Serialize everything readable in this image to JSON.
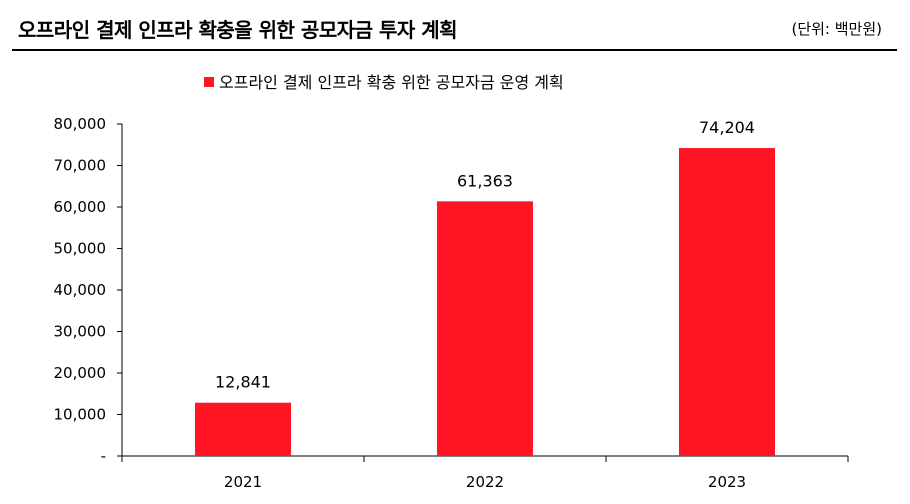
{
  "header": {
    "title": "오프라인 결제 인프라 확충을 위한 공모자금 투자 계획",
    "unit": "(단위: 백만원)"
  },
  "chart_data": {
    "type": "bar",
    "categories": [
      "2021",
      "2022",
      "2023"
    ],
    "series": [
      {
        "name": "오프라인 결제 인프라 확충 위한 공모자금 운영 계획",
        "values": [
          12841,
          61363,
          74204
        ],
        "color": "#ff1424"
      }
    ],
    "data_labels": [
      "12,841",
      "61,363",
      "74,204"
    ],
    "y_ticks": [
      "-",
      "10,000",
      "20,000",
      "30,000",
      "40,000",
      "50,000",
      "60,000",
      "70,000",
      "80,000"
    ],
    "ylim": [
      0,
      80000
    ],
    "grid": false,
    "legend_position": "top-center"
  }
}
